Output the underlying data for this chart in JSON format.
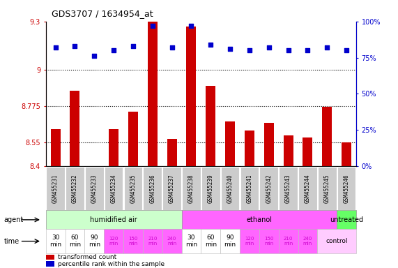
{
  "title": "GDS3707 / 1634954_at",
  "samples": [
    "GSM455231",
    "GSM455232",
    "GSM455233",
    "GSM455234",
    "GSM455235",
    "GSM455236",
    "GSM455237",
    "GSM455238",
    "GSM455239",
    "GSM455240",
    "GSM455241",
    "GSM455242",
    "GSM455243",
    "GSM455244",
    "GSM455245",
    "GSM455246"
  ],
  "transformed_count": [
    8.63,
    8.87,
    8.4,
    8.63,
    8.74,
    9.3,
    8.57,
    9.27,
    8.9,
    8.68,
    8.62,
    8.67,
    8.59,
    8.58,
    8.77,
    8.55
  ],
  "percentile_rank": [
    82,
    83,
    76,
    80,
    83,
    97,
    82,
    97,
    84,
    81,
    80,
    82,
    80,
    80,
    82,
    80
  ],
  "ylim_left": [
    8.4,
    9.3
  ],
  "yticks_left": [
    8.4,
    8.55,
    8.775,
    9.0,
    9.3
  ],
  "ytick_labels_left": [
    "8.4",
    "8.55",
    "8.775",
    "9",
    "9.3"
  ],
  "ylim_right": [
    0,
    100
  ],
  "yticks_right": [
    0,
    25,
    50,
    75,
    100
  ],
  "ytick_labels_right": [
    "0%",
    "25%",
    "50%",
    "75%",
    "100%"
  ],
  "dotted_yticks": [
    8.55,
    8.775,
    9.0
  ],
  "bar_color": "#cc0000",
  "dot_color": "#0000cc",
  "bar_width": 0.5,
  "agent_groups": [
    {
      "label": "humidified air",
      "start": 0,
      "end": 7,
      "color": "#ccffcc"
    },
    {
      "label": "ethanol",
      "start": 7,
      "end": 15,
      "color": "#ff66ff"
    },
    {
      "label": "untreated",
      "start": 15,
      "end": 16,
      "color": "#66ff66"
    }
  ],
  "time_cols": [
    {
      "label": "30\nmin",
      "color": "#ffffff",
      "span": 1,
      "fontcolor": "#000000",
      "fontsize": 6.5
    },
    {
      "label": "60\nmin",
      "color": "#ffffff",
      "span": 1,
      "fontcolor": "#000000",
      "fontsize": 6.5
    },
    {
      "label": "90\nmin",
      "color": "#ffffff",
      "span": 1,
      "fontcolor": "#000000",
      "fontsize": 6.5
    },
    {
      "label": "120\nmin",
      "color": "#ff66ff",
      "span": 1,
      "fontcolor": "#cc00cc",
      "fontsize": 5.0
    },
    {
      "label": "150\nmin",
      "color": "#ff66ff",
      "span": 1,
      "fontcolor": "#cc00cc",
      "fontsize": 5.0
    },
    {
      "label": "210\nmin",
      "color": "#ff66ff",
      "span": 1,
      "fontcolor": "#cc00cc",
      "fontsize": 5.0
    },
    {
      "label": "240\nmin",
      "color": "#ff66ff",
      "span": 1,
      "fontcolor": "#cc00cc",
      "fontsize": 5.0
    },
    {
      "label": "30\nmin",
      "color": "#ffffff",
      "span": 1,
      "fontcolor": "#000000",
      "fontsize": 6.5
    },
    {
      "label": "60\nmin",
      "color": "#ffffff",
      "span": 1,
      "fontcolor": "#000000",
      "fontsize": 6.5
    },
    {
      "label": "90\nmin",
      "color": "#ffffff",
      "span": 1,
      "fontcolor": "#000000",
      "fontsize": 6.5
    },
    {
      "label": "120\nmin",
      "color": "#ff66ff",
      "span": 1,
      "fontcolor": "#cc00cc",
      "fontsize": 5.0
    },
    {
      "label": "150\nmin",
      "color": "#ff66ff",
      "span": 1,
      "fontcolor": "#cc00cc",
      "fontsize": 5.0
    },
    {
      "label": "210\nmin",
      "color": "#ff66ff",
      "span": 1,
      "fontcolor": "#cc00cc",
      "fontsize": 5.0
    },
    {
      "label": "240\nmin",
      "color": "#ff66ff",
      "span": 1,
      "fontcolor": "#cc00cc",
      "fontsize": 5.0
    },
    {
      "label": "control",
      "color": "#ffccff",
      "span": 2,
      "fontcolor": "#000000",
      "fontsize": 6.5
    }
  ],
  "legend_bar_label": "transformed count",
  "legend_dot_label": "percentile rank within the sample",
  "bar_color_legend": "#cc0000",
  "dot_color_legend": "#0000cc",
  "sample_box_color": "#cccccc",
  "xlabel_color": "#cc0000",
  "right_axis_color": "#0000cc"
}
